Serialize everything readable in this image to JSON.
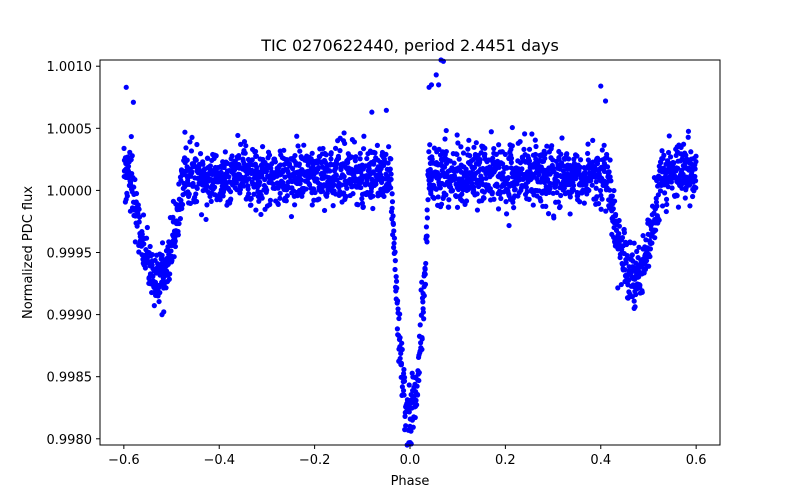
{
  "chart_data": {
    "type": "scatter",
    "title": "TIC 0270622440, period 2.4451 days",
    "xlabel": "Phase",
    "ylabel": "Normalized PDC flux",
    "xlim": [
      -0.65,
      0.65
    ],
    "ylim": [
      0.99795,
      1.00105
    ],
    "x_ticks": [
      -0.6,
      -0.4,
      -0.2,
      0.0,
      0.2,
      0.4,
      0.6
    ],
    "x_tick_labels": [
      "−0.6",
      "−0.4",
      "−0.2",
      "0.0",
      "0.2",
      "0.4",
      "0.6"
    ],
    "y_ticks": [
      0.998,
      0.9985,
      0.999,
      0.9995,
      1.0,
      1.0005,
      1.001
    ],
    "y_tick_labels": [
      "0.9980",
      "0.9985",
      "0.9990",
      "0.9995",
      "1.0000",
      "1.0005",
      "1.0010"
    ],
    "grid": false,
    "legend": "none",
    "marker_color": "#0000ff",
    "phase_range": [
      -0.6,
      0.6
    ],
    "baseline_flux": 1.00012,
    "scatter_sigma": 0.00012,
    "primary_eclipse": {
      "center": 0.0,
      "min_flux": 0.9982,
      "half_width": 0.04
    },
    "secondary_eclipses": [
      {
        "center": -0.53,
        "min_flux": 0.9993,
        "half_width": 0.055
      },
      {
        "center": 0.47,
        "min_flux": 0.9993,
        "half_width": 0.055
      }
    ],
    "notable_points": [
      {
        "x": -0.595,
        "y": 1.00083
      },
      {
        "x": -0.58,
        "y": 1.00071
      },
      {
        "x": 0.065,
        "y": 1.00105
      },
      {
        "x": 0.07,
        "y": 1.00104
      },
      {
        "x": 0.055,
        "y": 1.00093
      },
      {
        "x": 0.06,
        "y": 1.00085
      },
      {
        "x": 0.04,
        "y": 1.00083
      },
      {
        "x": 0.045,
        "y": 1.00085
      },
      {
        "x": 0.4,
        "y": 1.00084
      },
      {
        "x": 0.41,
        "y": 1.00072
      },
      {
        "x": -0.08,
        "y": 1.00063
      },
      {
        "x": 0.0,
        "y": 0.9981
      },
      {
        "x": 0.005,
        "y": 0.99815
      },
      {
        "x": -0.52,
        "y": 0.999
      },
      {
        "x": 0.47,
        "y": 0.99905
      }
    ]
  }
}
